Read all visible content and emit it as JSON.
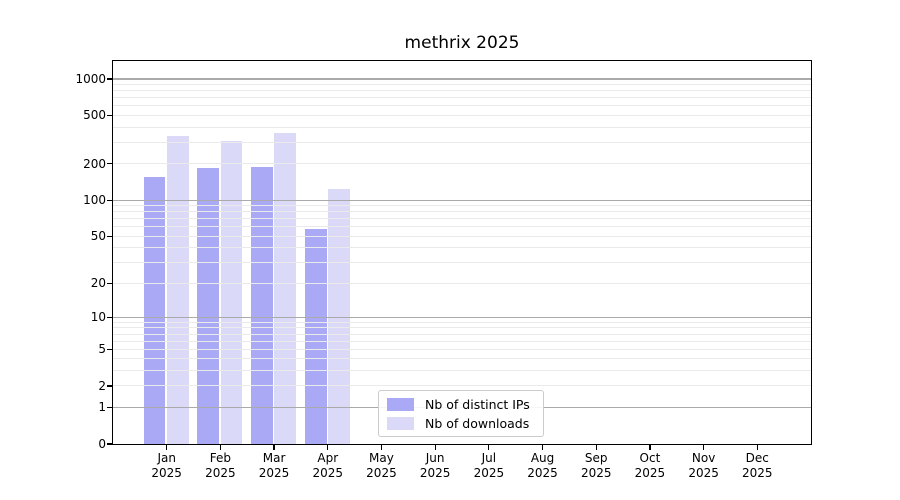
{
  "title": "methrix 2025",
  "chart_data": {
    "type": "bar",
    "title": "methrix 2025",
    "xlabel": "",
    "ylabel": "",
    "yscale": "log1p",
    "ylim": [
      0,
      1404
    ],
    "yticks": [
      0,
      1,
      2,
      5,
      10,
      20,
      50,
      100,
      200,
      500,
      1000
    ],
    "grid_major": [
      1,
      10,
      100,
      1000
    ],
    "grid": "on",
    "legend_position": "lower center",
    "year": "2025",
    "categories": [
      "Jan",
      "Feb",
      "Mar",
      "Apr",
      "May",
      "Jun",
      "Jul",
      "Aug",
      "Sep",
      "Oct",
      "Nov",
      "Dec"
    ],
    "series": [
      {
        "name": "Nb of distinct IPs",
        "color": "#a9a9f5",
        "values": [
          155,
          183,
          187,
          57,
          null,
          null,
          null,
          null,
          null,
          null,
          null,
          null
        ]
      },
      {
        "name": "Nb of downloads",
        "color": "#dadaf8",
        "values": [
          337,
          310,
          362,
          124,
          null,
          null,
          null,
          null,
          null,
          null,
          null,
          null
        ]
      }
    ],
    "colors": {
      "grid_major": "#aaaaaa",
      "grid_minor": "#eaeaea",
      "axis": "#000000"
    }
  }
}
